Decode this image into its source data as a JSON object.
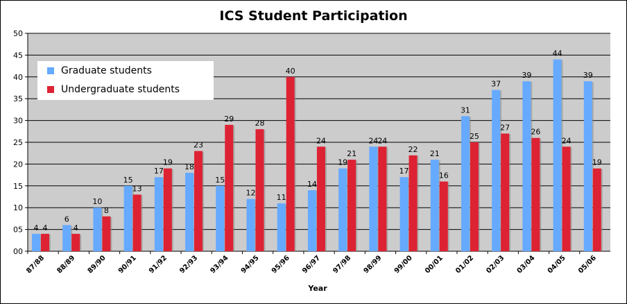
{
  "chart_data": {
    "type": "bar",
    "title": "ICS Student Participation",
    "xlabel": "Year",
    "ylabel": "",
    "ylim": [
      0,
      50
    ],
    "yticks": [
      "00",
      "05",
      "10",
      "15",
      "20",
      "25",
      "30",
      "35",
      "40",
      "45",
      "50"
    ],
    "categories": [
      "87/88",
      "88/89",
      "89/90",
      "90/91",
      "91/92",
      "92/93",
      "93/94",
      "94/95",
      "95/96",
      "96/97",
      "97/98",
      "98/99",
      "99/00",
      "00/01",
      "01/02",
      "02/03",
      "03/04",
      "04/05",
      "05/06"
    ],
    "series": [
      {
        "name": "Graduate students",
        "color": "#66aaff",
        "values": [
          4,
          6,
          10,
          15,
          17,
          18,
          15,
          12,
          11,
          14,
          19,
          24,
          17,
          21,
          31,
          37,
          39,
          44,
          39
        ]
      },
      {
        "name": "Undergraduate students",
        "color": "#dd2233",
        "values": [
          4,
          4,
          8,
          13,
          19,
          23,
          29,
          28,
          40,
          24,
          21,
          24,
          22,
          16,
          25,
          27,
          26,
          24,
          19
        ]
      }
    ],
    "grid": true,
    "legend_position": "top-left",
    "plot_background": "#cccccc"
  }
}
